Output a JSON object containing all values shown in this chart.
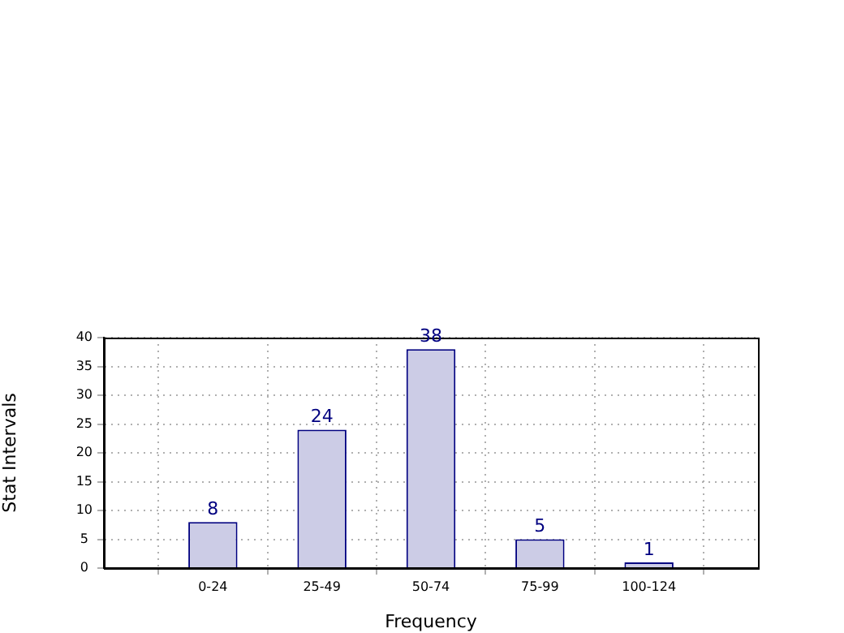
{
  "chart_data": {
    "type": "bar",
    "xlabel": "Frequency",
    "ylabel": "Stat Intervals",
    "categories": [
      "0-24",
      "25-49",
      "50-74",
      "75-99",
      "100-124"
    ],
    "values": [
      8,
      24,
      38,
      5,
      1
    ],
    "color": "#cccce6",
    "ylim": [
      0,
      40
    ],
    "yticks": [
      0,
      5,
      10,
      15,
      20,
      25,
      30,
      35,
      40
    ],
    "grid": true,
    "data_labels": true
  }
}
